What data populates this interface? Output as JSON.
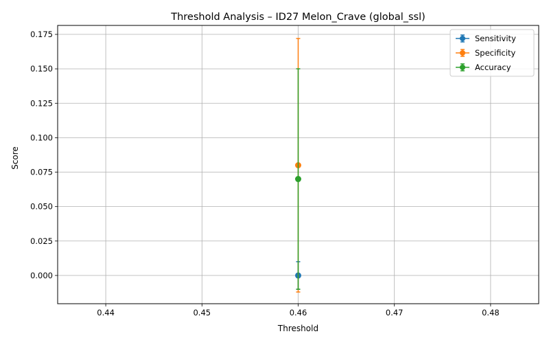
{
  "chart_data": {
    "type": "line",
    "title": "Threshold Analysis – ID27 Melon_Crave (global_ssl)",
    "xlabel": "Threshold",
    "ylabel": "Score",
    "xlim": [
      0.435,
      0.485
    ],
    "ylim": [
      -0.0205,
      0.1815
    ],
    "x_ticks": [
      "0.44",
      "0.45",
      "0.46",
      "0.47",
      "0.48"
    ],
    "x_tick_values": [
      0.44,
      0.45,
      0.46,
      0.47,
      0.48
    ],
    "y_ticks": [
      "0.000",
      "0.025",
      "0.050",
      "0.075",
      "0.100",
      "0.125",
      "0.150",
      "0.175"
    ],
    "y_tick_values": [
      0.0,
      0.025,
      0.05,
      0.075,
      0.1,
      0.125,
      0.15,
      0.175
    ],
    "grid": true,
    "legend_position": "top-right",
    "series": [
      {
        "name": "Sensitivity",
        "color": "#1f77b4",
        "x": [
          0.46
        ],
        "y": [
          0.0
        ],
        "err_low": [
          -0.01
        ],
        "err_high": [
          0.01
        ]
      },
      {
        "name": "Specificity",
        "color": "#ff7f0e",
        "x": [
          0.46
        ],
        "y": [
          0.08
        ],
        "err_low": [
          -0.012
        ],
        "err_high": [
          0.172
        ]
      },
      {
        "name": "Accuracy",
        "color": "#2ca02c",
        "x": [
          0.46
        ],
        "y": [
          0.07
        ],
        "err_low": [
          -0.01
        ],
        "err_high": [
          0.15
        ]
      }
    ]
  }
}
